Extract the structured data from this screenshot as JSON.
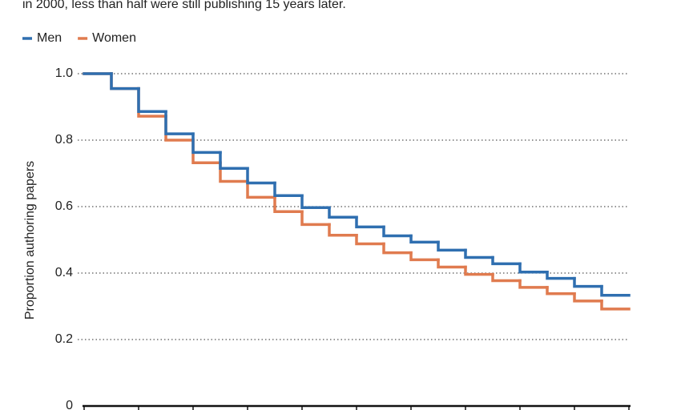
{
  "chart_data": {
    "type": "step",
    "subtitle": "in 2000, less than half were still publishing 15 years later.",
    "y_label": "Proportion authoring papers",
    "categories": [
      null,
      null,
      null,
      null,
      null,
      null,
      null,
      null,
      null,
      null,
      null,
      null,
      null,
      null,
      null,
      null,
      null,
      null,
      null,
      null
    ],
    "series": [
      {
        "name": "Men",
        "color": "#2f6fb0",
        "values": [
          1.0,
          0.955,
          0.886,
          0.819,
          0.763,
          0.715,
          0.671,
          0.633,
          0.597,
          0.568,
          0.539,
          0.512,
          0.493,
          0.469,
          0.447,
          0.428,
          0.403,
          0.384,
          0.36,
          0.333
        ]
      },
      {
        "name": "Women",
        "color": "#e07b4f",
        "values": [
          1.0,
          0.955,
          0.872,
          0.8,
          0.732,
          0.676,
          0.628,
          0.585,
          0.546,
          0.514,
          0.488,
          0.461,
          0.44,
          0.418,
          0.396,
          0.377,
          0.357,
          0.338,
          0.316,
          0.292
        ]
      }
    ],
    "ylim": [
      0,
      1.0
    ],
    "yticks": [
      0,
      0.2,
      0.4,
      0.6,
      0.8,
      {
        "value": 1.0,
        "label": "1.0"
      }
    ],
    "grid": true,
    "legend": "top-left"
  }
}
